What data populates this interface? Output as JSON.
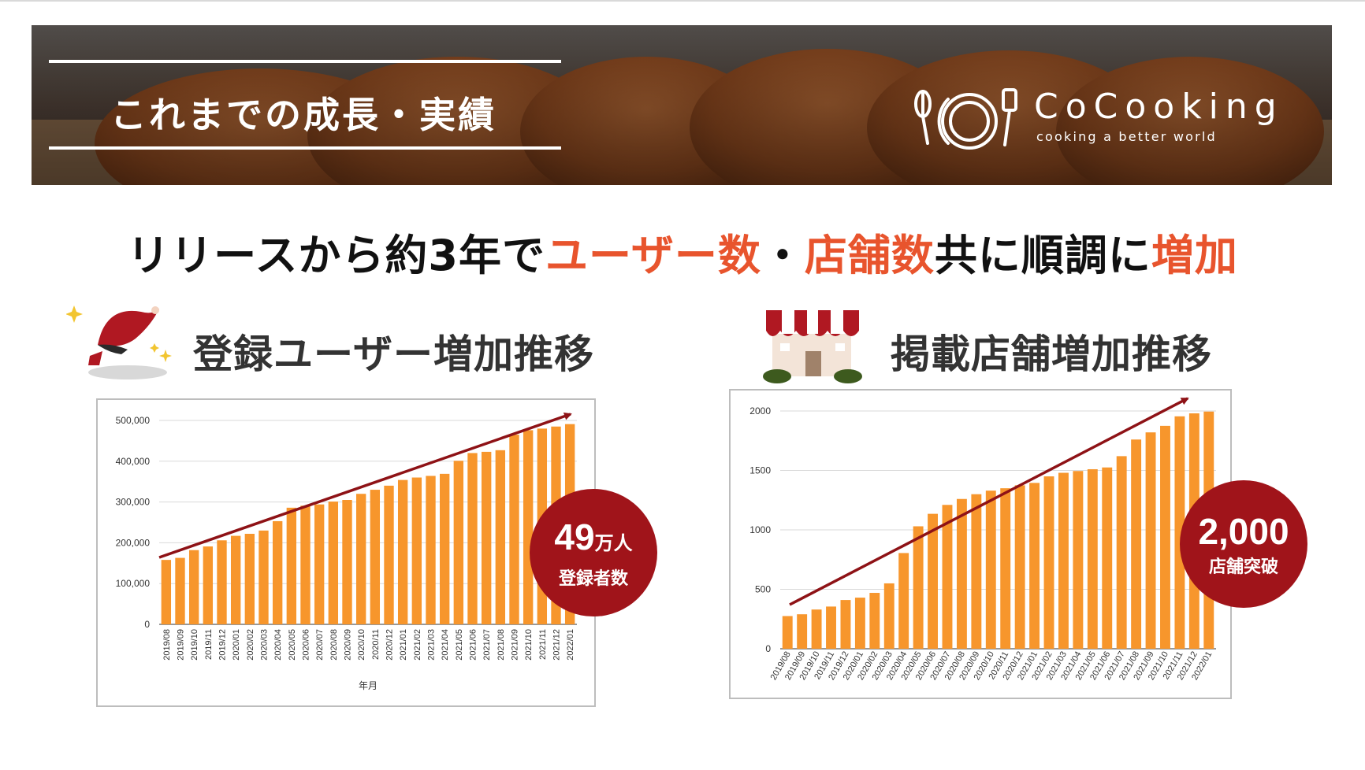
{
  "banner": {
    "title": "これまでの成長・実績",
    "logo": {
      "name": "CoCooking",
      "tagline": "cooking a better world"
    }
  },
  "headline": {
    "parts": [
      {
        "text": "リリースから約3年で",
        "color": "#111111"
      },
      {
        "text": "ユーザー数",
        "color": "#e8542d"
      },
      {
        "text": "・",
        "color": "#111111"
      },
      {
        "text": "店舗数",
        "color": "#e8542d"
      },
      {
        "text": "共に順調に",
        "color": "#111111"
      },
      {
        "text": "増加",
        "color": "#e8542d"
      }
    ]
  },
  "sections": {
    "users_title": "登録ユーザー増加推移",
    "stores_title": "掲載店舗増加推移"
  },
  "badges": {
    "users": {
      "number": "49",
      "unit": "万人",
      "label": "登録者数"
    },
    "stores": {
      "number": "2,000",
      "label": "店舗突破"
    }
  },
  "colors": {
    "bar": "#f7962c",
    "arrow": "#8e1216",
    "badge": "#a0141a",
    "accent_text": "#e8542d"
  },
  "chart_data": [
    {
      "type": "bar",
      "id": "users",
      "categories": [
        "2019/08",
        "2019/09",
        "2019/10",
        "2019/11",
        "2019/12",
        "2020/01",
        "2020/02",
        "2020/03",
        "2020/04",
        "2020/05",
        "2020/06",
        "2020/07",
        "2020/08",
        "2020/09",
        "2020/10",
        "2020/11",
        "2020/12",
        "2021/01",
        "2021/02",
        "2021/03",
        "2021/04",
        "2021/05",
        "2021/06",
        "2021/07",
        "2021/08",
        "2021/09",
        "2021/10",
        "2021/11",
        "2021/12",
        "2022/01"
      ],
      "values": [
        158000,
        163000,
        182000,
        191000,
        206000,
        217000,
        222000,
        230000,
        253000,
        286000,
        291000,
        294000,
        301000,
        305000,
        320000,
        330000,
        340000,
        354000,
        360000,
        364000,
        369000,
        401000,
        420000,
        423000,
        427000,
        465000,
        476000,
        480000,
        485000,
        491000
      ],
      "yticks": [
        0,
        100000,
        200000,
        300000,
        400000,
        500000
      ],
      "ytick_labels": [
        "0",
        "100,000",
        "200,000",
        "300,000",
        "400,000",
        "500,000"
      ],
      "ylim": [
        0,
        500000
      ],
      "xlabel": "年月",
      "ylabel": "",
      "grid": true,
      "trend_arrow": true
    },
    {
      "type": "bar",
      "id": "stores",
      "categories": [
        "2019/08",
        "2019/09",
        "2019/10",
        "2019/11",
        "2019/12",
        "2020/01",
        "2020/02",
        "2020/03",
        "2020/04",
        "2020/05",
        "2020/06",
        "2020/07",
        "2020/08",
        "2020/09",
        "2020/10",
        "2020/11",
        "2020/12",
        "2021/01",
        "2021/02",
        "2021/03",
        "2021/04",
        "2021/05",
        "2021/06",
        "2021/07",
        "2021/08",
        "2021/09",
        "2021/10",
        "2021/11",
        "2021/12",
        "2022/01"
      ],
      "values": [
        275,
        290,
        330,
        355,
        410,
        430,
        470,
        550,
        805,
        1030,
        1135,
        1210,
        1260,
        1300,
        1330,
        1350,
        1375,
        1395,
        1450,
        1480,
        1495,
        1510,
        1525,
        1620,
        1760,
        1820,
        1875,
        1955,
        1980,
        1995
      ],
      "yticks": [
        0,
        500,
        1000,
        1500,
        2000
      ],
      "ytick_labels": [
        "0",
        "500",
        "1000",
        "1500",
        "2000"
      ],
      "ylim": [
        0,
        2000
      ],
      "xlabel": "",
      "ylabel": "",
      "grid": true,
      "trend_arrow": true
    }
  ]
}
